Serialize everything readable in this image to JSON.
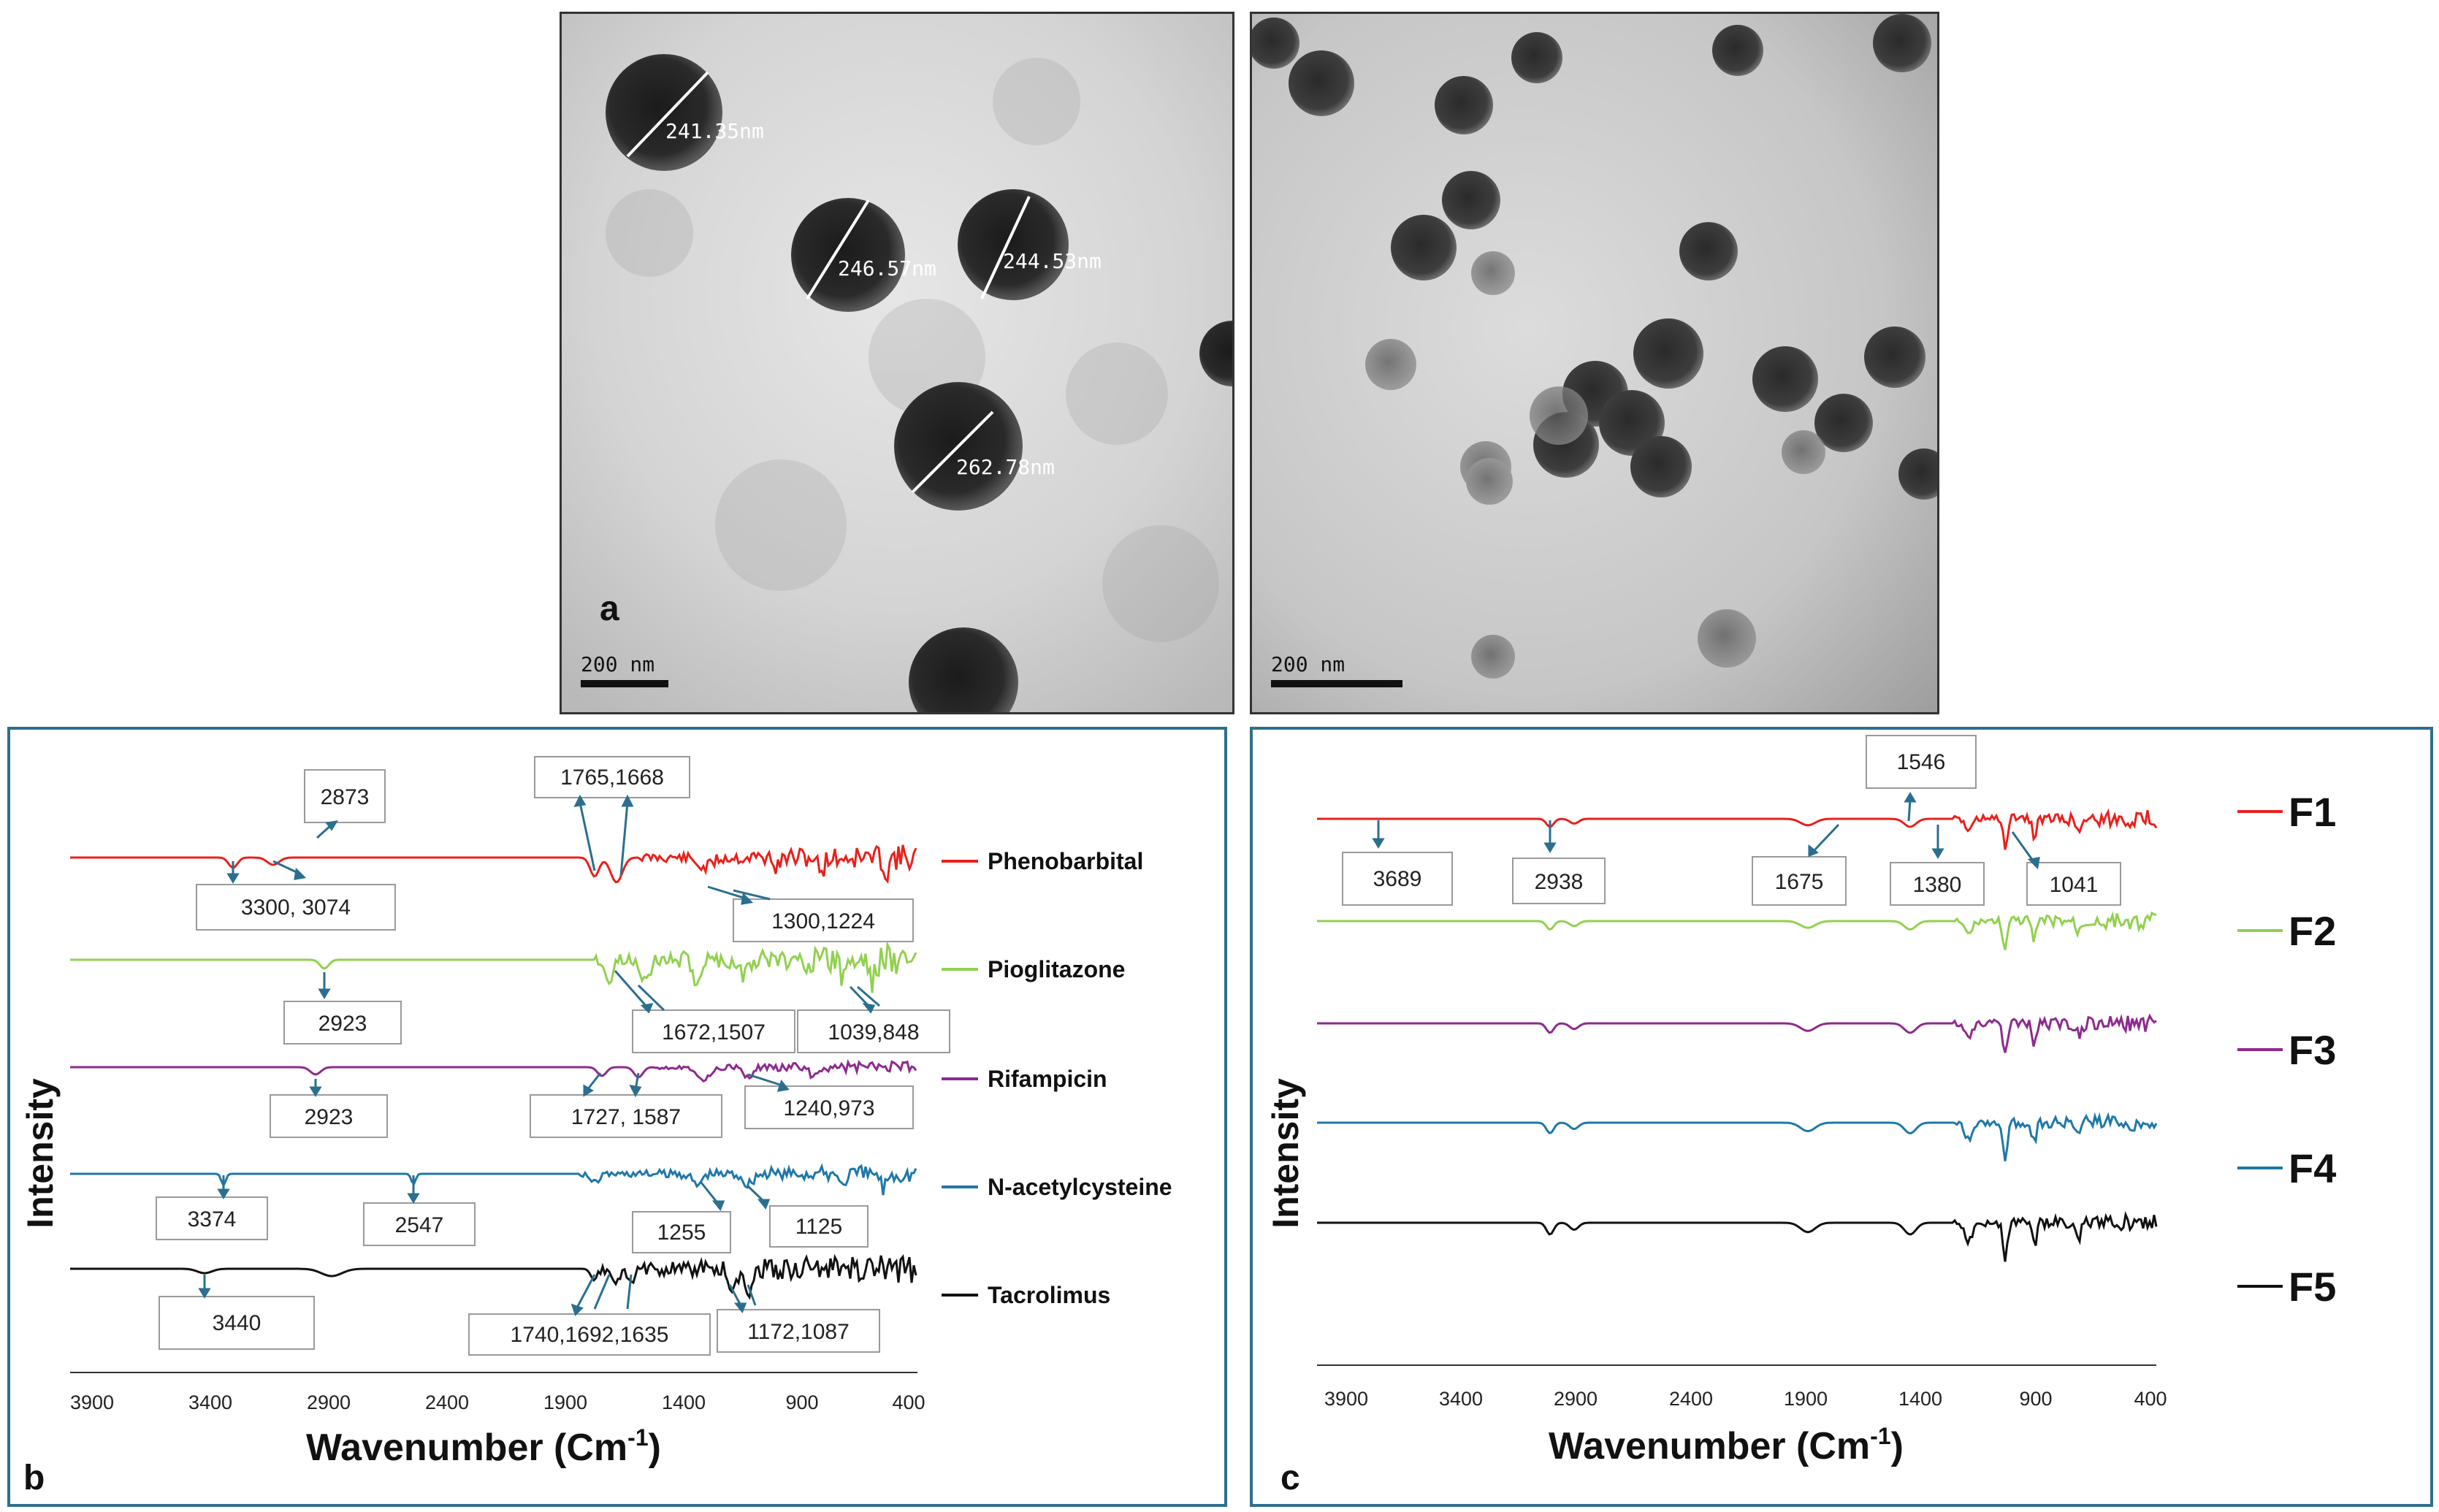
{
  "tem": {
    "panel_a_letter": "a",
    "scale_bar_a": "200 nm",
    "scale_bar_b": "200 nm",
    "measurements": [
      "241.35nm",
      "246.57nm",
      "244.53nm",
      "262.78nm"
    ]
  },
  "panel_b": {
    "letter": "b",
    "ylabel": "Intensity",
    "xlabel": "Wavenumber (Cm",
    "xlabel_sup": "-1",
    "xlabel_end": ")",
    "ticks": [
      "3900",
      "3400",
      "2900",
      "2400",
      "1900",
      "1400",
      "900",
      "400"
    ],
    "series": [
      {
        "name": "Phenobarbital",
        "color": "#e8211c"
      },
      {
        "name": "Pioglitazone",
        "color": "#92d050"
      },
      {
        "name": "Rifampicin",
        "color": "#8e2a8e"
      },
      {
        "name": "N-acetylcysteine",
        "color": "#1f78a8"
      },
      {
        "name": "Tacrolimus",
        "color": "#111111"
      }
    ],
    "annotations": [
      "2873",
      "3300, 3074",
      "1765,1668",
      "1300,1224",
      "2923",
      "1672,1507",
      "1039,848",
      "2923",
      "1727, 1587",
      "1240,973",
      "3374",
      "2547",
      "1255",
      "1125",
      "3440",
      "1740,1692,1635",
      "1172,1087"
    ]
  },
  "panel_c": {
    "letter": "c",
    "ylabel": "Intensity",
    "xlabel": "Wavenumber (Cm",
    "xlabel_sup": "-1",
    "xlabel_end": ")",
    "ticks": [
      "3900",
      "3400",
      "2900",
      "2400",
      "1900",
      "1400",
      "900",
      "400"
    ],
    "series": [
      {
        "name": "F1",
        "color": "#e8211c"
      },
      {
        "name": "F2",
        "color": "#92d050"
      },
      {
        "name": "F3",
        "color": "#8e2a8e"
      },
      {
        "name": "F4",
        "color": "#1f78a8"
      },
      {
        "name": "F5",
        "color": "#111111"
      }
    ],
    "annotations": [
      "1546",
      "3689",
      "2938",
      "1675",
      "1380",
      "1041"
    ]
  },
  "chart_data": [
    {
      "type": "line",
      "xlabel": "Wavenumber (Cm-1)",
      "ylabel": "Intensity",
      "xlim": [
        3900,
        400
      ],
      "series": [
        {
          "name": "Phenobarbital",
          "peaks": [
            3300,
            3074,
            2873,
            1765,
            1668,
            1300,
            1224
          ]
        },
        {
          "name": "Pioglitazone",
          "peaks": [
            2923,
            1672,
            1507,
            1039,
            848
          ]
        },
        {
          "name": "Rifampicin",
          "peaks": [
            2923,
            1727,
            1587,
            1240,
            973
          ]
        },
        {
          "name": "N-acetylcysteine",
          "peaks": [
            3374,
            2547,
            1255,
            1125
          ]
        },
        {
          "name": "Tacrolimus",
          "peaks": [
            3440,
            1740,
            1692,
            1635,
            1172,
            1087
          ]
        }
      ]
    },
    {
      "type": "line",
      "xlabel": "Wavenumber (Cm-1)",
      "ylabel": "Intensity",
      "xlim": [
        3900,
        400
      ],
      "series": [
        {
          "name": "F1",
          "peaks": [
            3689,
            2938,
            1675,
            1546,
            1380,
            1041
          ]
        },
        {
          "name": "F2",
          "peaks": []
        },
        {
          "name": "F3",
          "peaks": []
        },
        {
          "name": "F4",
          "peaks": []
        },
        {
          "name": "F5",
          "peaks": []
        }
      ]
    }
  ]
}
